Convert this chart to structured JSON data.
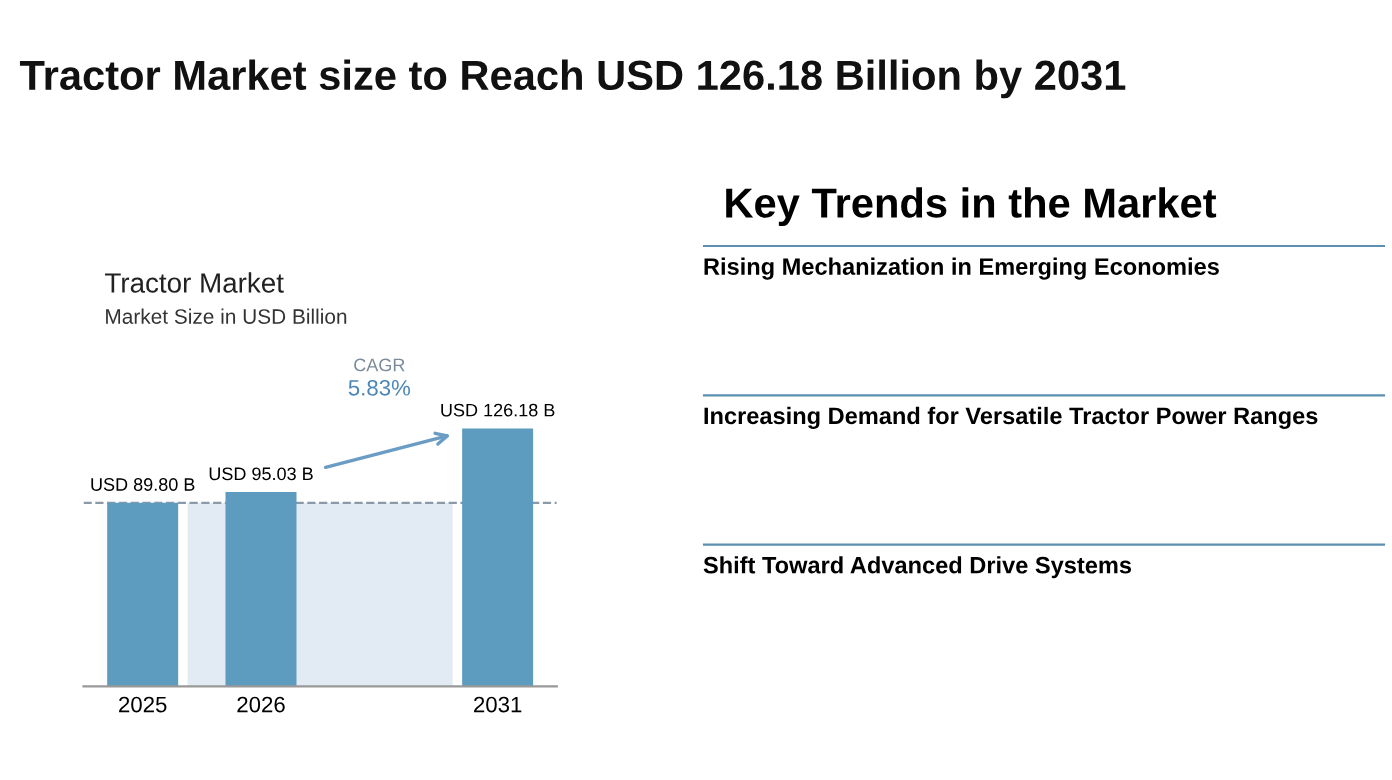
{
  "chart_data": [
    {
      "type": "other",
      "title": "Tractor Market size to Reach USD 126.18 Billion by 2031"
    },
    {
      "type": "bar",
      "title": "Tractor Market",
      "subtitle": "Market Size in USD Billion",
      "categories": [
        "2025",
        "2026",
        null,
        "2031"
      ],
      "values": [
        89.8,
        95.03,
        null,
        126.18
      ],
      "value_labels": [
        "USD 89.80 B",
        "USD 95.03 B",
        null,
        "USD 126.18 B"
      ],
      "color": "#5d9bbf",
      "ref_lines": [
        {
          "axis": "y",
          "value": 89.8,
          "line_style": "dashed",
          "color": "#8a9aa8"
        }
      ],
      "bands": [
        {
          "axis": "y",
          "from": 0,
          "to": 89.8,
          "color": "#e2ebf3"
        }
      ],
      "annotations": [
        "CAGR",
        "5.83%"
      ],
      "tick_labels": "x",
      "grid": false
    },
    {
      "type": "other",
      "title": "Key Trends in the Market",
      "annotations": [
        "Rising Mechanization in Emerging Economies",
        "Increasing Demand for Versatile Tractor Power Ranges",
        "Shift Toward Advanced Drive Systems"
      ]
    }
  ]
}
